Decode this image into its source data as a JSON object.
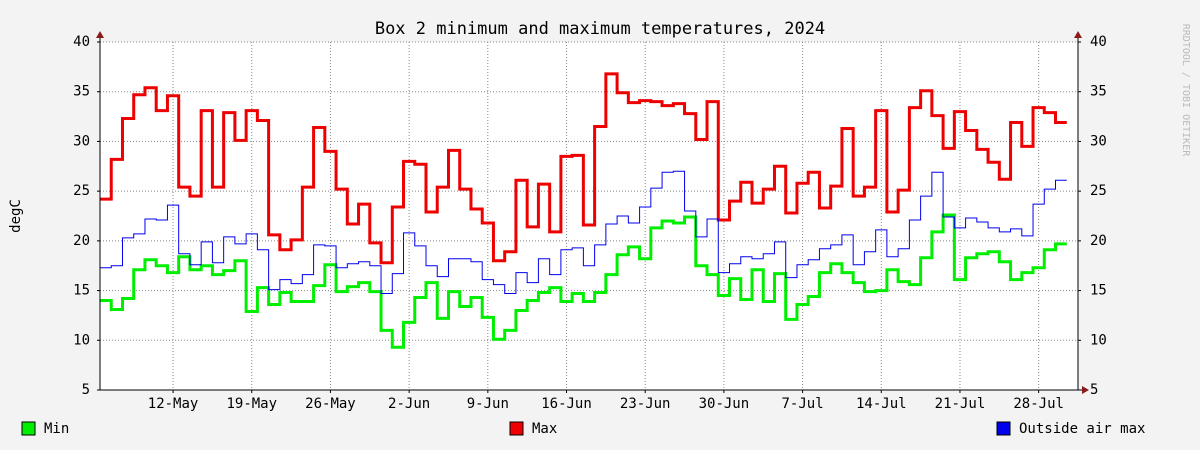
{
  "chart_data": {
    "type": "line",
    "step": true,
    "title": "Box 2 minimum and maximum temperatures, 2024",
    "y_label": "degC",
    "watermark": "RRDTOOL / TOBI OETIKER",
    "x": [
      127,
      128,
      129,
      130,
      131,
      132,
      133,
      134,
      135,
      136,
      137,
      138,
      139,
      140,
      141,
      142,
      143,
      144,
      145,
      146,
      147,
      148,
      149,
      150,
      151,
      152,
      153,
      154,
      155,
      156,
      157,
      158,
      159,
      160,
      161,
      162,
      163,
      164,
      165,
      166,
      167,
      168,
      169,
      170,
      171,
      172,
      173,
      174,
      175,
      176,
      177,
      178,
      179,
      180,
      181,
      182,
      183,
      184,
      185,
      186,
      187,
      188,
      189,
      190,
      191,
      192,
      193,
      194,
      195,
      196,
      197,
      198,
      199,
      200,
      201,
      202,
      203,
      204,
      205,
      206,
      207,
      208,
      209,
      210,
      211,
      212
    ],
    "xlim": [
      126.5,
      213.5
    ],
    "xticks": [
      {
        "value": 133,
        "label": "12-May"
      },
      {
        "value": 140,
        "label": "19-May"
      },
      {
        "value": 147,
        "label": "26-May"
      },
      {
        "value": 154,
        "label": "2-Jun"
      },
      {
        "value": 161,
        "label": "9-Jun"
      },
      {
        "value": 168,
        "label": "16-Jun"
      },
      {
        "value": 175,
        "label": "23-Jun"
      },
      {
        "value": 182,
        "label": "30-Jun"
      },
      {
        "value": 189,
        "label": "7-Jul"
      },
      {
        "value": 196,
        "label": "14-Jul"
      },
      {
        "value": 203,
        "label": "21-Jul"
      },
      {
        "value": 210,
        "label": "28-Jul"
      }
    ],
    "ylim": [
      5,
      40
    ],
    "yticks": [
      5,
      10,
      15,
      20,
      25,
      30,
      35,
      40
    ],
    "grid": true,
    "series": [
      {
        "name": "Min",
        "color": "#00ee00",
        "line_width": 3,
        "values": [
          14.0,
          13.1,
          14.2,
          17.1,
          18.1,
          17.5,
          16.8,
          18.4,
          17.1,
          17.5,
          16.6,
          17.0,
          18.0,
          12.9,
          15.3,
          13.6,
          14.8,
          13.9,
          13.9,
          15.5,
          17.6,
          14.9,
          15.4,
          15.8,
          14.9,
          11.0,
          9.3,
          11.8,
          14.3,
          15.8,
          12.2,
          14.9,
          13.4,
          14.3,
          12.3,
          10.1,
          11.0,
          13.0,
          14.0,
          14.8,
          15.3,
          13.9,
          14.7,
          13.9,
          14.8,
          16.6,
          18.6,
          19.4,
          18.2,
          21.3,
          22.0,
          21.8,
          22.4,
          17.5,
          16.6,
          14.5,
          16.2,
          14.1,
          17.1,
          13.9,
          16.7,
          12.1,
          13.6,
          14.4,
          16.8,
          17.7,
          16.8,
          15.8,
          14.9,
          15.0,
          17.1,
          15.9,
          15.6,
          18.3,
          20.9,
          22.6,
          16.1,
          18.3,
          18.7,
          18.9,
          17.9,
          16.1,
          16.8,
          17.3,
          19.1,
          19.7
        ]
      },
      {
        "name": "Max",
        "color": "#ee0000",
        "line_width": 3,
        "values": [
          24.2,
          28.2,
          32.3,
          34.7,
          35.4,
          33.1,
          34.6,
          25.4,
          24.5,
          33.1,
          25.4,
          32.9,
          30.1,
          33.1,
          32.1,
          20.6,
          19.1,
          20.1,
          25.4,
          31.4,
          29.0,
          25.2,
          21.7,
          23.7,
          19.8,
          17.8,
          23.4,
          28.0,
          27.7,
          22.9,
          25.4,
          29.1,
          25.2,
          23.2,
          21.8,
          18.0,
          18.9,
          26.1,
          21.4,
          25.7,
          20.9,
          28.5,
          28.6,
          21.6,
          31.5,
          36.8,
          34.9,
          33.9,
          34.1,
          34.0,
          33.6,
          33.8,
          32.8,
          30.2,
          34.0,
          22.1,
          24.0,
          25.9,
          23.8,
          25.2,
          27.5,
          22.8,
          25.8,
          26.9,
          23.3,
          25.5,
          31.3,
          24.5,
          25.4,
          33.1,
          22.9,
          25.1,
          33.4,
          35.1,
          32.6,
          29.3,
          33.0,
          31.1,
          29.2,
          27.9,
          26.2,
          31.9,
          29.5,
          33.4,
          32.9,
          31.9
        ]
      },
      {
        "name": "Outside air max",
        "color": "#0000ee",
        "line_width": 1,
        "values": [
          17.3,
          17.5,
          20.3,
          20.7,
          22.2,
          22.1,
          23.6,
          18.7,
          17.6,
          19.9,
          17.8,
          20.4,
          19.7,
          20.7,
          19.1,
          15.1,
          16.1,
          15.7,
          16.6,
          19.6,
          19.5,
          17.3,
          17.7,
          17.9,
          17.5,
          14.7,
          16.7,
          20.8,
          19.5,
          17.5,
          16.4,
          18.2,
          18.2,
          17.9,
          16.1,
          15.6,
          14.7,
          16.8,
          15.8,
          18.2,
          16.6,
          19.1,
          19.3,
          17.5,
          19.6,
          21.7,
          22.5,
          21.8,
          23.4,
          25.3,
          26.9,
          27.0,
          23.0,
          20.4,
          22.2,
          16.8,
          17.7,
          18.4,
          18.2,
          18.7,
          19.9,
          16.3,
          17.6,
          18.1,
          19.2,
          19.6,
          20.6,
          17.6,
          18.9,
          21.1,
          18.4,
          19.2,
          22.1,
          24.5,
          26.9,
          22.4,
          21.3,
          22.3,
          21.9,
          21.3,
          20.9,
          21.2,
          20.5,
          23.7,
          25.2,
          26.1
        ]
      }
    ]
  }
}
